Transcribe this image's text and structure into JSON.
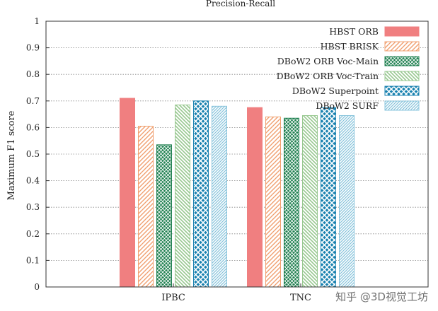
{
  "chart_data": {
    "type": "bar",
    "title": "Precision-Recall",
    "ylabel": "Maximum F1 score",
    "xlabel": "",
    "ylim": [
      0,
      1
    ],
    "yticks": [
      "0",
      "0.1",
      "0.2",
      "0.3",
      "0.4",
      "0.5",
      "0.6",
      "0.7",
      "0.8",
      "0.9",
      "1"
    ],
    "categories": [
      "IPBC",
      "TNC"
    ],
    "grid": "horizontal-dotted",
    "legend_position": "top-right",
    "series": [
      {
        "name": "HBST ORB",
        "values": [
          0.71,
          0.675
        ],
        "color": "#f07f80",
        "fill": "solid"
      },
      {
        "name": "HBST BRISK",
        "values": [
          0.605,
          0.64
        ],
        "color": "#f0a070",
        "fill": "hatch-right"
      },
      {
        "name": "DBoW2 ORB Voc-Main",
        "values": [
          0.535,
          0.635
        ],
        "color": "#1f8050",
        "fill": "crosshatch-dense"
      },
      {
        "name": "DBoW2 ORB Voc-Train",
        "values": [
          0.685,
          0.645
        ],
        "color": "#98c890",
        "fill": "hatch-left"
      },
      {
        "name": "DBoW2 Superpoint",
        "values": [
          0.7,
          0.675
        ],
        "color": "#1a82b0",
        "fill": "crosshatch"
      },
      {
        "name": "DBoW2 SURF",
        "values": [
          0.68,
          0.645
        ],
        "color": "#88c4dc",
        "fill": "hatch-right-fine"
      }
    ]
  },
  "watermark": "知乎 @3D视觉工坊"
}
